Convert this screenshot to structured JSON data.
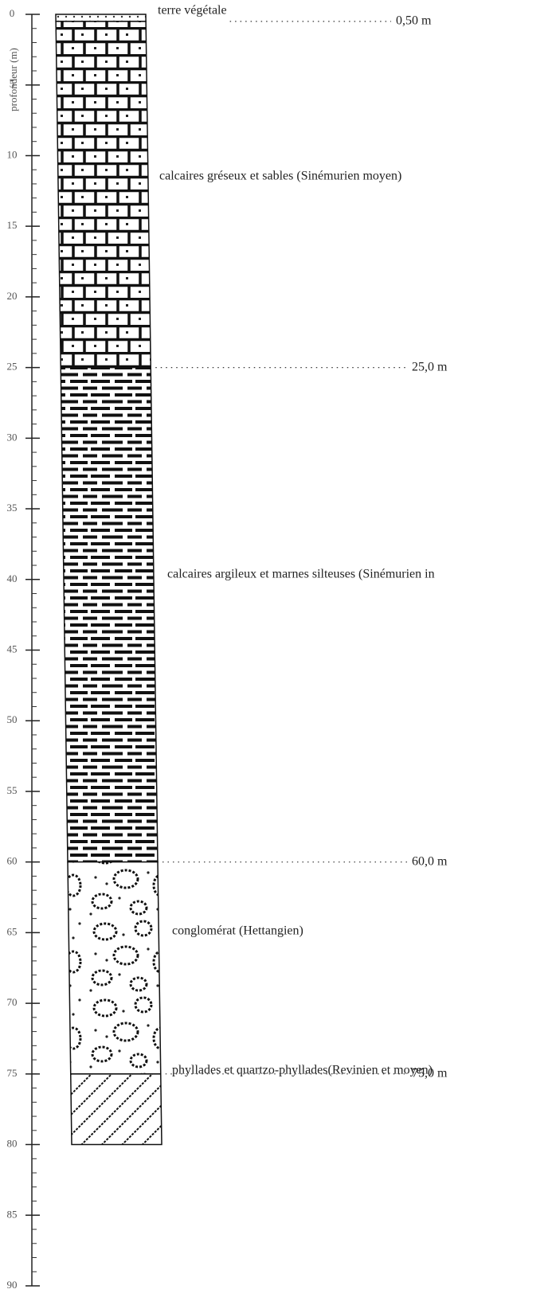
{
  "axis": {
    "label": "profondeur (m)",
    "ylim": [
      0,
      90
    ],
    "yticks": [
      0,
      5,
      10,
      15,
      20,
      25,
      30,
      35,
      40,
      45,
      50,
      55,
      60,
      65,
      70,
      75,
      80,
      85,
      90
    ]
  },
  "layers": [
    {
      "top": 0,
      "bottom": 0.5,
      "name": "terre végétale",
      "depth_label": "0,50 m"
    },
    {
      "top": 0.5,
      "bottom": 25,
      "name": "calcaires gréseux et sables (Sinémurien moyen)",
      "depth_label": "25,0 m"
    },
    {
      "top": 25,
      "bottom": 60,
      "name": "calcaires argileux et marnes silteuses (Sinémurien in",
      "depth_label": "60,0 m"
    },
    {
      "top": 60,
      "bottom": 75,
      "name": "conglomérat (Hettangien)",
      "depth_label": "75,0 m"
    },
    {
      "top": 75,
      "bottom": 80,
      "name": "phyllades et quartzo-phyllades(Revinien et moyen)"
    }
  ]
}
